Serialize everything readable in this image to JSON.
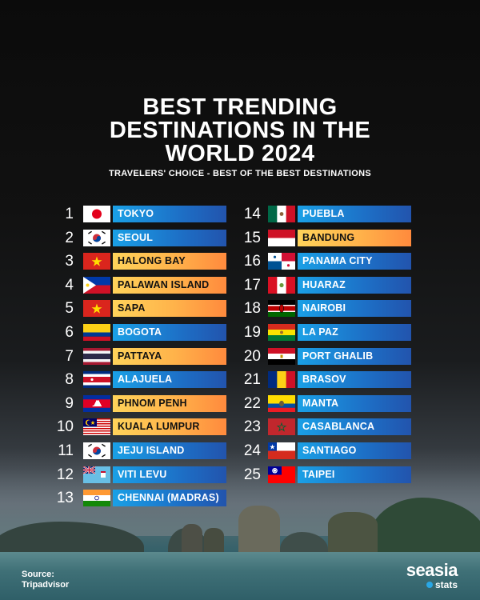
{
  "header": {
    "title_lines": [
      "BEST TRENDING",
      "DESTINATIONS IN THE",
      "WORLD 2024"
    ],
    "subtitle": "TRAVELERS' CHOICE - BEST OF THE BEST DESTINATIONS"
  },
  "colors": {
    "blue_bar": "#1d6fc6",
    "orange_bar": "#ffb24a",
    "background": "#0b0b0b"
  },
  "destinations": [
    {
      "rank": "1",
      "name": "TOKYO",
      "country": "Japan",
      "flag": "jp",
      "color": "blue"
    },
    {
      "rank": "2",
      "name": "SEOUL",
      "country": "South Korea",
      "flag": "kr",
      "color": "blue"
    },
    {
      "rank": "3",
      "name": "HALONG BAY",
      "country": "Vietnam",
      "flag": "vn",
      "color": "orange"
    },
    {
      "rank": "4",
      "name": "PALAWAN ISLAND",
      "country": "Philippines",
      "flag": "ph",
      "color": "orange"
    },
    {
      "rank": "5",
      "name": "SAPA",
      "country": "Vietnam",
      "flag": "vn",
      "color": "orange"
    },
    {
      "rank": "6",
      "name": "BOGOTA",
      "country": "Colombia",
      "flag": "co",
      "color": "blue"
    },
    {
      "rank": "7",
      "name": "PATTAYA",
      "country": "Thailand",
      "flag": "th",
      "color": "orange"
    },
    {
      "rank": "8",
      "name": "ALAJUELA",
      "country": "Costa Rica",
      "flag": "cr",
      "color": "blue"
    },
    {
      "rank": "9",
      "name": "PHNOM PENH",
      "country": "Cambodia",
      "flag": "kh",
      "color": "orange"
    },
    {
      "rank": "10",
      "name": "KUALA LUMPUR",
      "country": "Malaysia",
      "flag": "my",
      "color": "orange"
    },
    {
      "rank": "11",
      "name": "JEJU ISLAND",
      "country": "South Korea",
      "flag": "kr",
      "color": "blue"
    },
    {
      "rank": "12",
      "name": "VITI LEVU",
      "country": "Fiji",
      "flag": "fj",
      "color": "blue"
    },
    {
      "rank": "13",
      "name": "CHENNAI (MADRAS)",
      "country": "India",
      "flag": "in",
      "color": "blue"
    },
    {
      "rank": "14",
      "name": "PUEBLA",
      "country": "Mexico",
      "flag": "mx",
      "color": "blue"
    },
    {
      "rank": "15",
      "name": "BANDUNG",
      "country": "Indonesia",
      "flag": "id",
      "color": "orange"
    },
    {
      "rank": "16",
      "name": "PANAMA CITY",
      "country": "Panama",
      "flag": "pa",
      "color": "blue"
    },
    {
      "rank": "17",
      "name": "HUARAZ",
      "country": "Peru",
      "flag": "pe",
      "color": "blue"
    },
    {
      "rank": "18",
      "name": "NAIROBI",
      "country": "Kenya",
      "flag": "ke",
      "color": "blue"
    },
    {
      "rank": "19",
      "name": "LA PAZ",
      "country": "Bolivia",
      "flag": "bo",
      "color": "blue"
    },
    {
      "rank": "20",
      "name": "PORT GHALIB",
      "country": "Egypt",
      "flag": "eg",
      "color": "blue"
    },
    {
      "rank": "21",
      "name": "BRASOV",
      "country": "Romania",
      "flag": "ro",
      "color": "blue"
    },
    {
      "rank": "22",
      "name": "MANTA",
      "country": "Ecuador",
      "flag": "ec",
      "color": "blue"
    },
    {
      "rank": "23",
      "name": "CASABLANCA",
      "country": "Morocco",
      "flag": "ma",
      "color": "blue"
    },
    {
      "rank": "24",
      "name": "SANTIAGO",
      "country": "Chile",
      "flag": "cl",
      "color": "blue"
    },
    {
      "rank": "25",
      "name": "TAIPEI",
      "country": "Taiwan",
      "flag": "tw",
      "color": "blue"
    }
  ],
  "footer": {
    "source_label": "Source:",
    "source_value": "Tripadvisor",
    "logo_main": "seasia",
    "logo_sub": "stats"
  }
}
